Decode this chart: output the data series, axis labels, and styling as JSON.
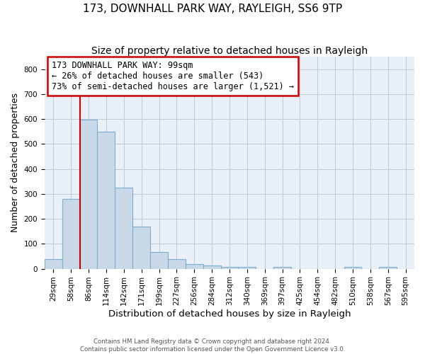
{
  "title": "173, DOWNHALL PARK WAY, RAYLEIGH, SS6 9TP",
  "subtitle": "Size of property relative to detached houses in Rayleigh",
  "xlabel": "Distribution of detached houses by size in Rayleigh",
  "ylabel": "Number of detached properties",
  "footer_line1": "Contains HM Land Registry data © Crown copyright and database right 2024.",
  "footer_line2": "Contains public sector information licensed under the Open Government Licence v3.0.",
  "bin_labels": [
    "29sqm",
    "58sqm",
    "86sqm",
    "114sqm",
    "142sqm",
    "171sqm",
    "199sqm",
    "227sqm",
    "256sqm",
    "284sqm",
    "312sqm",
    "340sqm",
    "369sqm",
    "397sqm",
    "425sqm",
    "454sqm",
    "482sqm",
    "510sqm",
    "538sqm",
    "567sqm",
    "595sqm"
  ],
  "bar_heights": [
    38,
    280,
    598,
    550,
    325,
    170,
    68,
    38,
    20,
    12,
    8,
    8,
    0,
    8,
    0,
    0,
    0,
    8,
    0,
    8,
    0
  ],
  "bar_color": "#c9d9e8",
  "bar_edge_color": "#7bafd4",
  "grid_color": "#c0ccda",
  "background_color": "#eaf0f7",
  "vline_color": "#cc0000",
  "vline_xindex": 1.5,
  "annotation_line1": "173 DOWNHALL PARK WAY: 99sqm",
  "annotation_line2": "← 26% of detached houses are smaller (543)",
  "annotation_line3": "73% of semi-detached houses are larger (1,521) →",
  "annotation_box_edgecolor": "#cc0000",
  "ylim_max": 850,
  "yticks": [
    0,
    100,
    200,
    300,
    400,
    500,
    600,
    700,
    800
  ],
  "title_fontsize": 11,
  "subtitle_fontsize": 10,
  "xlabel_fontsize": 9.5,
  "ylabel_fontsize": 9,
  "tick_fontsize": 7.5,
  "annotation_fontsize": 8.5
}
